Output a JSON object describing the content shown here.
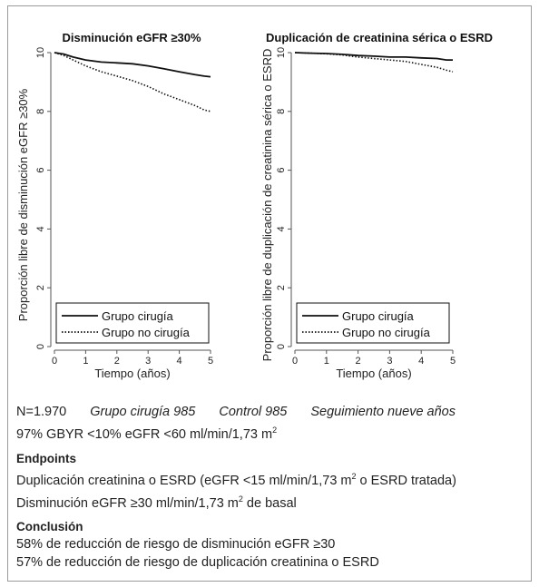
{
  "charts": [
    {
      "id": "egfr",
      "title": "Disminución eGFR ≥30%",
      "ylabel": "Proporción libre de disminución eGFR ≥30%",
      "xlabel": "Tiempo (años)",
      "yticks": [
        "0",
        "2",
        "4",
        "6",
        "8",
        "10"
      ],
      "xticks": [
        "0",
        "1",
        "2",
        "3",
        "4",
        "5"
      ],
      "legend": [
        "Grupo cirugía",
        "Grupo no cirugía"
      ]
    },
    {
      "id": "creat",
      "title": "Duplicación de creatinina sérica o ESRD",
      "ylabel": "Proporción libre de duplicación de creatinina sérica o ESRD",
      "xlabel": "Tiempo (años)",
      "yticks": [
        "0",
        "2",
        "4",
        "6",
        "8",
        "10"
      ],
      "xticks": [
        "0",
        "1",
        "2",
        "3",
        "4",
        "5"
      ],
      "legend": [
        "Grupo cirugía",
        "Grupo no cirugía"
      ]
    }
  ],
  "chart_data": [
    {
      "type": "line",
      "title": "Disminución eGFR ≥30%",
      "xlabel": "Tiempo (años)",
      "ylabel": "Proporción libre de disminución eGFR ≥30%",
      "xlim": [
        0,
        5
      ],
      "ylim": [
        0,
        10
      ],
      "legend_position": "bottom-left",
      "series": [
        {
          "name": "Grupo cirugía",
          "style": "solid",
          "x": [
            0,
            0.3,
            0.6,
            1,
            1.5,
            2,
            2.5,
            3,
            3.5,
            4,
            4.5,
            4.8,
            5
          ],
          "y": [
            10,
            9.95,
            9.85,
            9.75,
            9.68,
            9.65,
            9.62,
            9.55,
            9.45,
            9.35,
            9.25,
            9.2,
            9.18
          ]
        },
        {
          "name": "Grupo no cirugía",
          "style": "dotted",
          "x": [
            0,
            0.3,
            0.6,
            1,
            1.5,
            2,
            2.5,
            3,
            3.5,
            4,
            4.5,
            4.8,
            5
          ],
          "y": [
            10,
            9.9,
            9.75,
            9.55,
            9.35,
            9.2,
            9.05,
            8.85,
            8.6,
            8.4,
            8.2,
            8.05,
            8.0
          ]
        }
      ]
    },
    {
      "type": "line",
      "title": "Duplicación de creatinina sérica o ESRD",
      "xlabel": "Tiempo (años)",
      "ylabel": "Proporción libre de duplicación de creatinina sérica o ESRD",
      "xlim": [
        0,
        5
      ],
      "ylim": [
        0,
        10
      ],
      "legend_position": "bottom-left",
      "series": [
        {
          "name": "Grupo cirugía",
          "style": "solid",
          "x": [
            0,
            0.5,
            1,
            1.5,
            2,
            2.5,
            3,
            3.5,
            4,
            4.5,
            4.8,
            5
          ],
          "y": [
            10,
            9.98,
            9.97,
            9.94,
            9.9,
            9.88,
            9.85,
            9.85,
            9.82,
            9.8,
            9.75,
            9.75
          ]
        },
        {
          "name": "Grupo no cirugía",
          "style": "dotted",
          "x": [
            0,
            0.5,
            1,
            1.5,
            2,
            2.5,
            3,
            3.5,
            4,
            4.5,
            4.8,
            5
          ],
          "y": [
            10,
            9.98,
            9.96,
            9.92,
            9.85,
            9.8,
            9.75,
            9.7,
            9.6,
            9.5,
            9.4,
            9.35
          ]
        }
      ]
    }
  ],
  "info": {
    "n": "N=1.970",
    "grupo": "Grupo cirugía 985",
    "control": "Control 985",
    "seguimiento": "Seguimiento nueve años",
    "gbyr": "97% GBYR <10% eGFR <60 ml/min/1,73 m",
    "gbyr_sup": "2",
    "endpoints_title": "Endpoints",
    "endpoint1": "Duplicación creatinina o ESRD (eGFR <15 ml/min/1,73 m",
    "endpoint1_sup": "2",
    "endpoint1_end": " o ESRD tratada)",
    "endpoint2": "Disminución eGFR ≥30 ml/min/1,73 m",
    "endpoint2_sup": "2",
    "endpoint2_end": " de basal",
    "conclusion_title": "Conclusión",
    "conclusion1": "58% de reducción de riesgo de disminución eGFR ≥30",
    "conclusion2": "57% de reducción de riesgo de duplicación creatinina o ESRD"
  }
}
